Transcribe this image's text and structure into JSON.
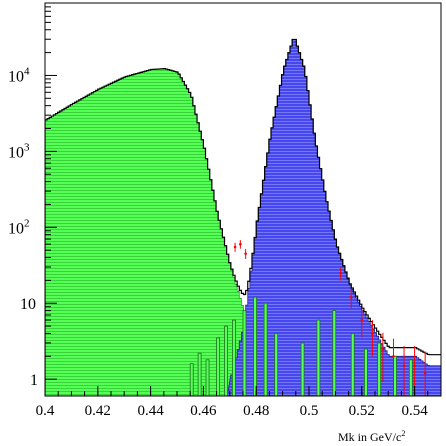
{
  "chart_data": {
    "type": "area",
    "title": "",
    "xlabel": "Mk in GeV/c",
    "xlabel_superscript": "2",
    "ylabel": "",
    "xlim": [
      0.4,
      0.55
    ],
    "ylim": [
      0.6,
      90000
    ],
    "yscale": "log",
    "grid": false,
    "legend": "none",
    "x_ticks": [
      0.4,
      0.42,
      0.44,
      0.46,
      0.48,
      0.5,
      0.52,
      0.54
    ],
    "x_tick_labels": [
      "0.4",
      "0.42",
      "0.44",
      "0.46",
      "0.48",
      "0.5",
      "0.52",
      "0.54"
    ],
    "y_ticks": [
      {
        "value": 1,
        "label": "1"
      },
      {
        "value": 10,
        "label": "10"
      },
      {
        "value": 100,
        "label": "10",
        "sup": "2"
      },
      {
        "value": 1000,
        "label": "10",
        "sup": "3"
      },
      {
        "value": 10000,
        "label": "10",
        "sup": "4"
      }
    ],
    "colors": {
      "background_fill": "#55ff55",
      "background_line": "#2e9e2e",
      "signal_fill": "#4747ee",
      "signal_line": "#22227a",
      "data_points": "#ff0000",
      "total_outline": "#000000"
    },
    "series": [
      {
        "role": "background (green, hatched)",
        "x": [
          0.4,
          0.41,
          0.42,
          0.43,
          0.44,
          0.445,
          0.45,
          0.455,
          0.46,
          0.465,
          0.47,
          0.475,
          0.48
        ],
        "values": [
          2600,
          4200,
          6600,
          9600,
          12000,
          12300,
          11000,
          5500,
          1100,
          150,
          30,
          8,
          1
        ]
      },
      {
        "role": "signal (blue, hatched)",
        "x": [
          0.47,
          0.475,
          0.48,
          0.485,
          0.49,
          0.494,
          0.498,
          0.502,
          0.506,
          0.51,
          0.515,
          0.52,
          0.525,
          0.53,
          0.535,
          0.54,
          0.545,
          0.55
        ],
        "values": [
          1,
          5,
          120,
          1600,
          12000,
          33000,
          12000,
          1400,
          250,
          60,
          18,
          8,
          4,
          2,
          2,
          2,
          1.5,
          1.5
        ]
      },
      {
        "role": "data (red points with error bars)",
        "x": [
          0.472,
          0.474,
          0.476,
          0.512,
          0.516,
          0.52,
          0.524,
          0.528,
          0.532,
          0.536,
          0.54,
          0.544
        ],
        "values": [
          55,
          60,
          45,
          25,
          12,
          6,
          4,
          2.5,
          2,
          1.5,
          1.5,
          1.2
        ]
      }
    ]
  }
}
